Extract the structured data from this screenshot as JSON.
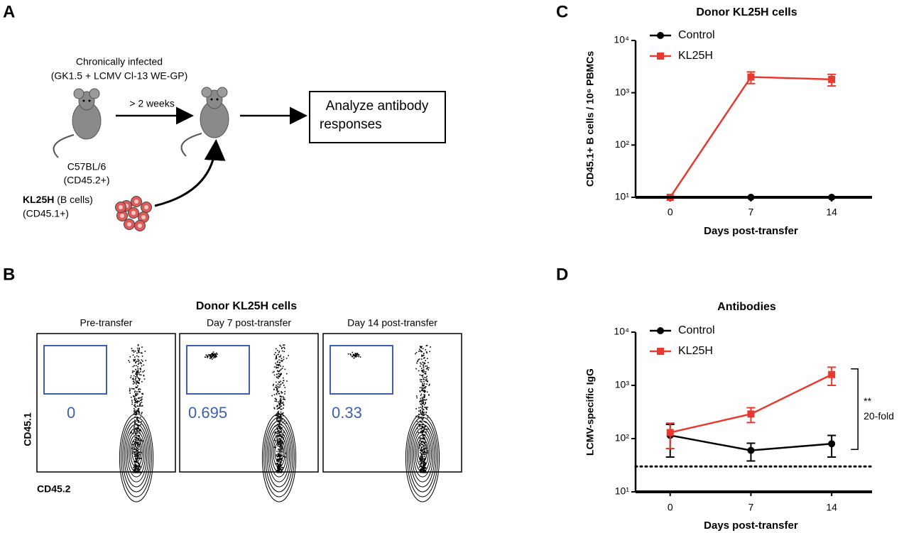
{
  "panel_labels": [
    "A",
    "B",
    "C",
    "D"
  ],
  "panel_a": {
    "host_label": [
      "Chronically infected",
      "(GK1.5 + LCMV Cl-13 WE-GP)"
    ],
    "strain": [
      "C57BL/6",
      "(CD45.2+)"
    ],
    "interval": "> 2 weeks",
    "readout": [
      "Analyze antibody",
      "responses"
    ],
    "donor": {
      "name": "KL25H",
      "type": " (B cells)",
      "marker": "(CD45.1+)"
    }
  },
  "panel_b": {
    "title": "Donor KL25H cells",
    "y_label": "CD45.1",
    "x_label": "CD45.2",
    "plots": [
      {
        "title": "Pre-transfer",
        "gate_value": 0
      },
      {
        "title": "Day 7 post-transfer",
        "gate_value": 0.695
      },
      {
        "title": "Day 14 post-transfer",
        "gate_value": 0.33
      }
    ]
  },
  "chart_data": [
    {
      "type": "line",
      "title": "Donor KL25H cells",
      "x_label": "Days post-transfer",
      "y_label": "CD45.1+ B cells / 10⁶ PBMCs",
      "x": [
        0,
        7,
        14
      ],
      "xlim": [
        -3,
        17.5
      ],
      "xticks": [
        0,
        7,
        14
      ],
      "ylim": [
        10,
        10000
      ],
      "log_y": true,
      "yticks": [
        {
          "value": 10,
          "label": "10¹"
        },
        {
          "value": 100,
          "label": "10²"
        },
        {
          "value": 1000,
          "label": "10³"
        },
        {
          "value": 10000,
          "label": "10⁴"
        }
      ],
      "legend": "upper left",
      "series": [
        {
          "name": "Control",
          "color": "#000000",
          "marker": "circle",
          "values": [
            10,
            10,
            10
          ]
        },
        {
          "name": "KL25H",
          "color": "#e8392e",
          "marker": "square",
          "values": [
            10,
            2000,
            1800
          ],
          "errors": [
            0,
            500,
            450
          ]
        }
      ]
    },
    {
      "type": "line",
      "title": "Antibodies",
      "x_label": "Days post-transfer",
      "y_label": "LCMV-specific IgG",
      "x": [
        0,
        7,
        14
      ],
      "xlim": [
        -3,
        17.5
      ],
      "xticks": [
        0,
        7,
        14
      ],
      "ylim": [
        10,
        10000
      ],
      "log_y": true,
      "yticks": [
        {
          "value": 10,
          "label": "10¹"
        },
        {
          "value": 100,
          "label": "10²"
        },
        {
          "value": 1000,
          "label": "10³"
        },
        {
          "value": 10000,
          "label": "10⁴"
        }
      ],
      "legend": "upper left",
      "reference_line": 30,
      "annotations": [
        "**",
        "20-fold"
      ],
      "series": [
        {
          "name": "Control",
          "color": "#000000",
          "marker": "circle",
          "values": [
            115,
            60,
            80
          ],
          "errors": [
            70,
            22,
            35
          ]
        },
        {
          "name": "KL25H",
          "color": "#e8392e",
          "marker": "square",
          "values": [
            130,
            290,
            1600
          ],
          "errors": [
            65,
            90,
            600
          ]
        }
      ]
    }
  ]
}
